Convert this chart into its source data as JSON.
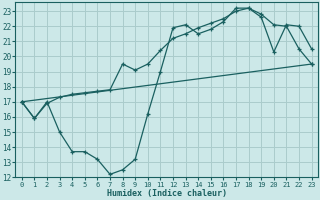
{
  "xlabel": "Humidex (Indice chaleur)",
  "bg_color": "#cce8e8",
  "grid_color": "#aacccc",
  "line_color": "#1a6060",
  "xlim": [
    -0.5,
    23.5
  ],
  "ylim": [
    12,
    23.6
  ],
  "yticks": [
    12,
    13,
    14,
    15,
    16,
    17,
    18,
    19,
    20,
    21,
    22,
    23
  ],
  "xticks": [
    0,
    1,
    2,
    3,
    4,
    5,
    6,
    7,
    8,
    9,
    10,
    11,
    12,
    13,
    14,
    15,
    16,
    17,
    18,
    19,
    20,
    21,
    22,
    23
  ],
  "line1_x": [
    0,
    1,
    2,
    3,
    4,
    5,
    6,
    7,
    8,
    9,
    10,
    11,
    12,
    13,
    14,
    15,
    16,
    17,
    18,
    19,
    20,
    21,
    22,
    23
  ],
  "line1_y": [
    17.0,
    15.9,
    16.9,
    17.3,
    17.5,
    17.6,
    17.7,
    17.8,
    19.5,
    19.1,
    19.5,
    20.4,
    21.2,
    21.5,
    21.9,
    22.2,
    22.5,
    23.0,
    23.2,
    22.8,
    22.1,
    22.0,
    20.5,
    19.5
  ],
  "line2_x": [
    0,
    1,
    2,
    3,
    4,
    5,
    6,
    7,
    8,
    9,
    10,
    11,
    12,
    13,
    14,
    15,
    16,
    17,
    18,
    19,
    20,
    21,
    22,
    23
  ],
  "line2_y": [
    17.0,
    15.9,
    17.0,
    15.0,
    13.7,
    13.7,
    13.2,
    12.2,
    12.5,
    13.2,
    16.2,
    19.0,
    21.9,
    22.1,
    21.5,
    21.8,
    22.3,
    23.2,
    23.2,
    22.6,
    20.3,
    22.1,
    22.0,
    20.5
  ],
  "line3_x": [
    0,
    23
  ],
  "line3_y": [
    17.0,
    19.5
  ]
}
